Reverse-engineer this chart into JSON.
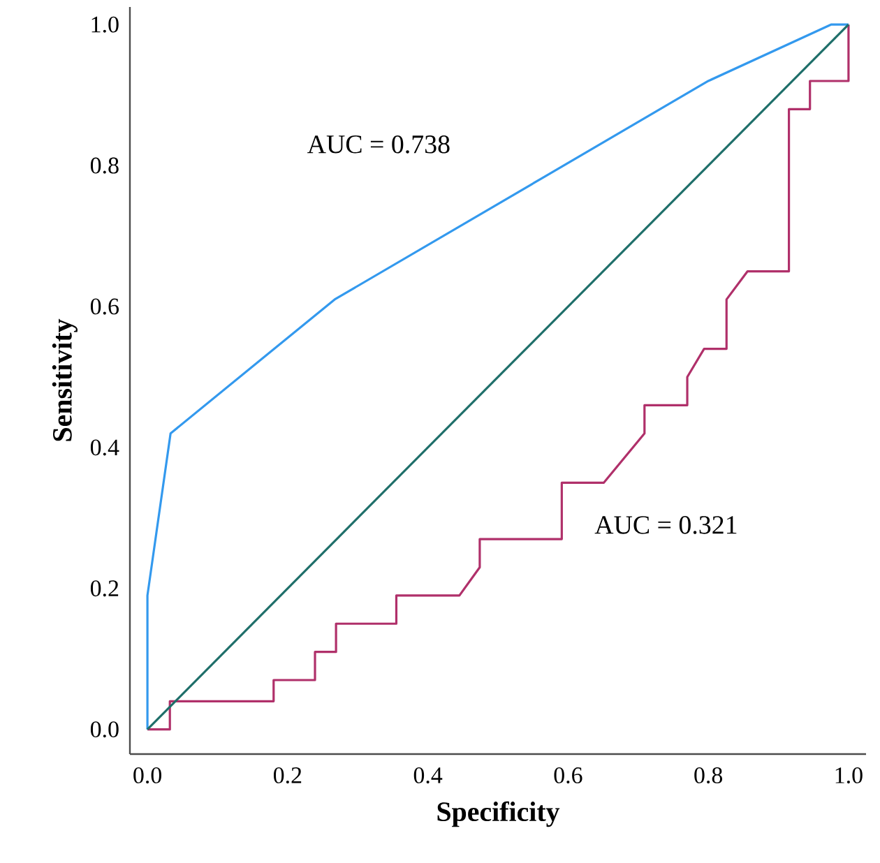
{
  "chart_data": {
    "type": "line",
    "xlabel": "Specificity",
    "ylabel": "Sensitivity",
    "xlim": [
      -0.025,
      1.025
    ],
    "ylim": [
      -0.035,
      1.025
    ],
    "xticks": [
      {
        "value": 0,
        "label": "0.0"
      },
      0.2,
      0.4,
      0.6,
      0.8,
      {
        "value": 1,
        "label": "1.0"
      }
    ],
    "yticks": [
      {
        "value": 0,
        "label": "0.0"
      },
      0.2,
      0.4,
      0.6,
      0.8,
      {
        "value": 1,
        "label": "1.0"
      }
    ],
    "annotations": [
      "AUC = 0.738",
      "AUC = 0.321"
    ],
    "series": [
      {
        "color": "#3399ee",
        "x": [
          0,
          0,
          0.033,
          0.267,
          0.8,
          0.975,
          1
        ],
        "values": [
          0,
          0.19,
          0.42,
          0.61,
          0.92,
          1,
          1
        ]
      },
      {
        "color": "#b0306a",
        "x": [
          0,
          0.032,
          0.032,
          0.18,
          0.18,
          0.239,
          0.239,
          0.269,
          0.269,
          0.355,
          0.355,
          0.445,
          0.474,
          0.474,
          0.591,
          0.591,
          0.651,
          0.709,
          0.709,
          0.77,
          0.77,
          0.794,
          0.826,
          0.826,
          0.856,
          0.915,
          0.915,
          0.945,
          0.945,
          1,
          1
        ],
        "values": [
          0,
          0,
          0.04,
          0.04,
          0.07,
          0.07,
          0.11,
          0.11,
          0.15,
          0.15,
          0.19,
          0.19,
          0.23,
          0.27,
          0.27,
          0.35,
          0.35,
          0.42,
          0.46,
          0.46,
          0.5,
          0.54,
          0.54,
          0.61,
          0.65,
          0.65,
          0.88,
          0.88,
          0.92,
          0.92,
          1
        ]
      },
      {
        "color": "#1f6f6a",
        "x": [
          0,
          1
        ],
        "values": [
          0,
          1
        ]
      }
    ]
  }
}
